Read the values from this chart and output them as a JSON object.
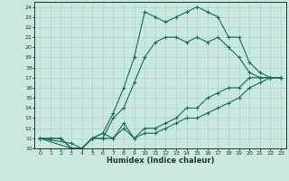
{
  "title": "",
  "xlabel": "Humidex (Indice chaleur)",
  "background_color": "#c8e8e0",
  "line_color": "#1a6b5a",
  "grid_color": "#b0d0cc",
  "xlim": [
    -0.5,
    23.5
  ],
  "ylim": [
    10,
    24.5
  ],
  "xticks": [
    0,
    1,
    2,
    3,
    4,
    5,
    6,
    7,
    8,
    9,
    10,
    11,
    12,
    13,
    14,
    15,
    16,
    17,
    18,
    19,
    20,
    21,
    22,
    23
  ],
  "yticks": [
    10,
    11,
    12,
    13,
    14,
    15,
    16,
    17,
    18,
    19,
    20,
    21,
    22,
    23,
    24
  ],
  "lines": [
    {
      "x": [
        0,
        1,
        2,
        3,
        4,
        5,
        6,
        7,
        8,
        9,
        10,
        11,
        12,
        13,
        14,
        15,
        16,
        17,
        18,
        19,
        20,
        21,
        22,
        23
      ],
      "y": [
        11,
        11,
        11,
        10,
        10,
        11,
        11.5,
        13.5,
        16,
        19,
        23.5,
        23,
        22.5,
        23,
        23.5,
        24,
        23.5,
        23,
        21,
        21,
        18.5,
        17.5,
        17,
        17
      ]
    },
    {
      "x": [
        0,
        1,
        2,
        3,
        4,
        5,
        6,
        7,
        8,
        9,
        10,
        11,
        12,
        13,
        14,
        15,
        16,
        17,
        18,
        19,
        20,
        21,
        22,
        23
      ],
      "y": [
        11,
        11,
        11,
        10,
        10,
        11,
        11,
        13,
        14,
        16.5,
        19,
        20.5,
        21,
        21,
        20.5,
        21,
        20.5,
        21,
        20,
        19,
        17.5,
        17,
        17,
        17
      ]
    },
    {
      "x": [
        0,
        3,
        4,
        5,
        6,
        7,
        8,
        9,
        10,
        11,
        12,
        13,
        14,
        15,
        16,
        17,
        18,
        19,
        20,
        21,
        22,
        23
      ],
      "y": [
        11,
        10,
        10,
        11,
        11.5,
        11,
        12.5,
        11,
        12,
        12,
        12.5,
        13,
        14,
        14,
        15,
        15.5,
        16,
        16,
        17,
        17,
        17,
        17
      ]
    },
    {
      "x": [
        0,
        3,
        4,
        5,
        6,
        7,
        8,
        9,
        10,
        11,
        12,
        13,
        14,
        15,
        16,
        17,
        18,
        19,
        20,
        21,
        22,
        23
      ],
      "y": [
        11,
        10.5,
        10,
        11,
        11,
        11,
        12,
        11,
        11.5,
        11.5,
        12,
        12.5,
        13,
        13,
        13.5,
        14,
        14.5,
        15,
        16,
        16.5,
        17,
        17
      ]
    }
  ]
}
